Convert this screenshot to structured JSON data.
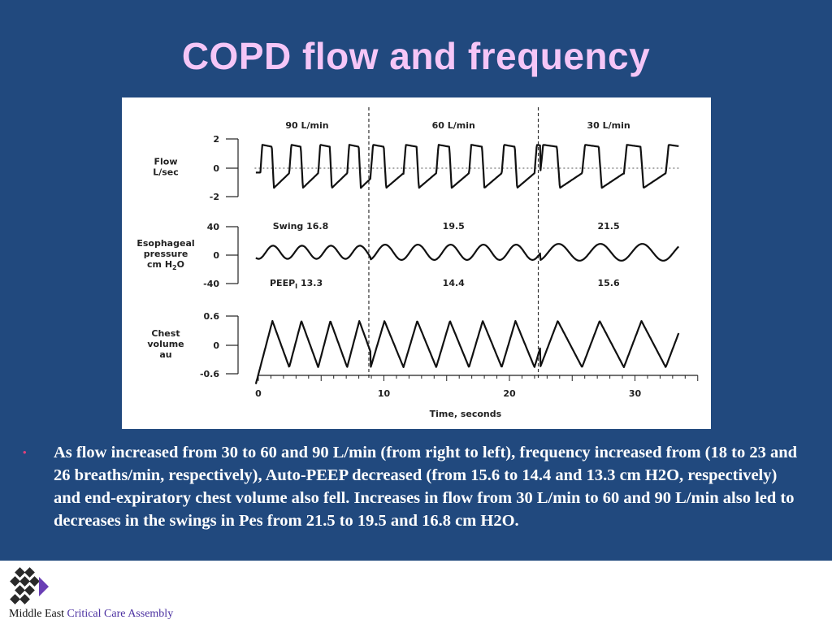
{
  "slide": {
    "title": "COPD flow and frequency",
    "bullet_symbol": "•",
    "bullet_text": "As flow increased from 30 to 60 and 90 L/min (from right to left), frequency increased from (18 to 23 and 26 breaths/min, respectively), Auto-PEEP decreased (from 15.6 to 14.4 and 13.3 cm H2O, respectively) and end-expiratory chest volume also fell. Increases in flow from 30 L/min to 60 and 90 L/min also led to decreases in the swings in Pes from 21.5 to 19.5 and 16.8 cm H2O.",
    "footer": {
      "org_part1": "Middle East",
      "org_part2": "Critical Care Assembly"
    }
  },
  "colors": {
    "background": "#21497e",
    "title": "#f5c6f7",
    "bullet": "#e0407a",
    "footer_accent": "#4a2fa0",
    "trace": "#111111"
  },
  "chart_data": {
    "type": "line",
    "xlabel": "Time, seconds",
    "x_ticks": [
      0,
      10,
      20,
      30
    ],
    "xlim": [
      0,
      35
    ],
    "dividers_x": [
      8.8,
      22.3
    ],
    "segments": [
      {
        "label": "90 L/min",
        "x_range": [
          0,
          8.8
        ],
        "breaths_per_min": 26,
        "pes_swing_label": "Swing 16.8",
        "peep_label": "PEEP",
        "peep_subscript": "I",
        "peep_value": "13.3"
      },
      {
        "label": "60 L/min",
        "x_range": [
          8.8,
          22.3
        ],
        "breaths_per_min": 23,
        "pes_swing_label": "19.5",
        "peep_value_label": "14.4"
      },
      {
        "label": "30 L/min",
        "x_range": [
          22.3,
          33.5
        ],
        "breaths_per_min": 18,
        "pes_swing_label": "21.5",
        "peep_value_label": "15.6"
      }
    ],
    "panels": [
      {
        "name": "flow",
        "ylabel_lines": [
          "Flow",
          "L/sec"
        ],
        "y_ticks": [
          "2",
          "0",
          "-2"
        ],
        "ylim": [
          -2,
          2
        ],
        "baseline_dashed": true
      },
      {
        "name": "esophageal-pressure",
        "ylabel_lines": [
          "Esophageal",
          "pressure",
          "cm H"
        ],
        "ylabel_sub": "2",
        "ylabel_suffix": "O",
        "y_ticks": [
          "40",
          "0",
          "-40"
        ],
        "ylim": [
          -40,
          40
        ]
      },
      {
        "name": "chest-volume",
        "ylabel_lines": [
          "Chest",
          "volume",
          "au"
        ],
        "y_ticks": [
          "0.6",
          "0",
          "-0.6"
        ],
        "ylim": [
          -0.6,
          0.6
        ]
      }
    ]
  }
}
